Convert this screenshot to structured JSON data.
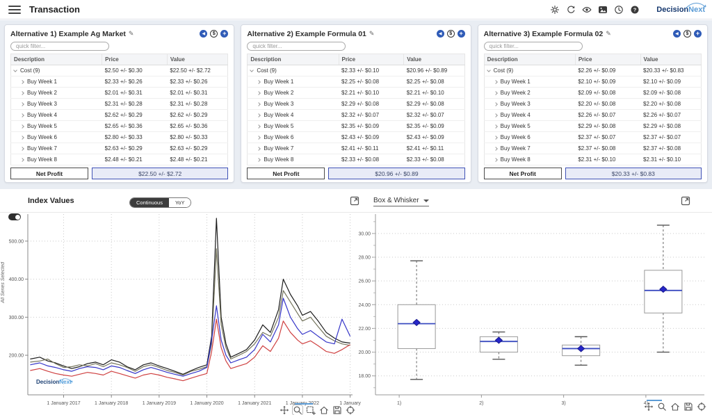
{
  "header": {
    "title": "Transaction",
    "icons": [
      "settings",
      "refresh",
      "eye",
      "image",
      "clock",
      "help"
    ],
    "logo_decision": "Decision",
    "logo_next": "Next"
  },
  "panels": [
    {
      "title": "Alternative 1) Example Ag Market",
      "quick_filter_placeholder": "quick filter...",
      "columns": [
        "Description",
        "Price",
        "Value"
      ],
      "rows": [
        {
          "label": "Cost (9)",
          "price": "$2.50 +/- $0.30",
          "value": "$22.50 +/- $2.72",
          "level": 0,
          "expanded": true
        },
        {
          "label": "Buy Week 1",
          "price": "$2.33 +/- $0.26",
          "value": "$2.33 +/- $0.26",
          "level": 1
        },
        {
          "label": "Buy Week 2",
          "price": "$2.01 +/- $0.31",
          "value": "$2.01 +/- $0.31",
          "level": 1
        },
        {
          "label": "Buy Week 3",
          "price": "$2.31 +/- $0.28",
          "value": "$2.31 +/- $0.28",
          "level": 1
        },
        {
          "label": "Buy Week 4",
          "price": "$2.62 +/- $0.29",
          "value": "$2.62 +/- $0.29",
          "level": 1
        },
        {
          "label": "Buy Week 5",
          "price": "$2.65 +/- $0.36",
          "value": "$2.65 +/- $0.36",
          "level": 1
        },
        {
          "label": "Buy Week 6",
          "price": "$2.80 +/- $0.33",
          "value": "$2.80 +/- $0.33",
          "level": 1
        },
        {
          "label": "Buy Week 7",
          "price": "$2.63 +/- $0.29",
          "value": "$2.63 +/- $0.29",
          "level": 1
        },
        {
          "label": "Buy Week 8",
          "price": "$2.48 +/- $0.21",
          "value": "$2.48 +/- $0.21",
          "level": 1
        }
      ],
      "net_profit_label": "Net Profit",
      "net_profit_value": "$22.50 +/- $2.72"
    },
    {
      "title": "Alternative 2) Example Formula 01",
      "quick_filter_placeholder": "quick filter...",
      "columns": [
        "Description",
        "Price",
        "Value"
      ],
      "rows": [
        {
          "label": "Cost (9)",
          "price": "$2.33 +/- $0.10",
          "value": "$20.96 +/- $0.89",
          "level": 0,
          "expanded": true
        },
        {
          "label": "Buy Week 1",
          "price": "$2.25 +/- $0.08",
          "value": "$2.25 +/- $0.08",
          "level": 1
        },
        {
          "label": "Buy Week 2",
          "price": "$2.21 +/- $0.10",
          "value": "$2.21 +/- $0.10",
          "level": 1
        },
        {
          "label": "Buy Week 3",
          "price": "$2.29 +/- $0.08",
          "value": "$2.29 +/- $0.08",
          "level": 1
        },
        {
          "label": "Buy Week 4",
          "price": "$2.32 +/- $0.07",
          "value": "$2.32 +/- $0.07",
          "level": 1
        },
        {
          "label": "Buy Week 5",
          "price": "$2.35 +/- $0.09",
          "value": "$2.35 +/- $0.09",
          "level": 1
        },
        {
          "label": "Buy Week 6",
          "price": "$2.43 +/- $0.09",
          "value": "$2.43 +/- $0.09",
          "level": 1
        },
        {
          "label": "Buy Week 7",
          "price": "$2.41 +/- $0.11",
          "value": "$2.41 +/- $0.11",
          "level": 1
        },
        {
          "label": "Buy Week 8",
          "price": "$2.33 +/- $0.08",
          "value": "$2.33 +/- $0.08",
          "level": 1
        }
      ],
      "net_profit_label": "Net Profit",
      "net_profit_value": "$20.96 +/- $0.89"
    },
    {
      "title": "Alternative 3) Example Formula 02",
      "quick_filter_placeholder": "quick filter...",
      "columns": [
        "Description",
        "Price",
        "Value"
      ],
      "rows": [
        {
          "label": "Cost (9)",
          "price": "$2.26 +/- $0.09",
          "value": "$20.33 +/- $0.83",
          "level": 0,
          "expanded": true
        },
        {
          "label": "Buy Week 1",
          "price": "$2.10 +/- $0.09",
          "value": "$2.10 +/- $0.09",
          "level": 1
        },
        {
          "label": "Buy Week 2",
          "price": "$2.09 +/- $0.08",
          "value": "$2.09 +/- $0.08",
          "level": 1
        },
        {
          "label": "Buy Week 3",
          "price": "$2.20 +/- $0.08",
          "value": "$2.20 +/- $0.08",
          "level": 1
        },
        {
          "label": "Buy Week 4",
          "price": "$2.26 +/- $0.07",
          "value": "$2.26 +/- $0.07",
          "level": 1
        },
        {
          "label": "Buy Week 5",
          "price": "$2.29 +/- $0.08",
          "value": "$2.29 +/- $0.08",
          "level": 1
        },
        {
          "label": "Buy Week 6",
          "price": "$2.37 +/- $0.07",
          "value": "$2.37 +/- $0.07",
          "level": 1
        },
        {
          "label": "Buy Week 7",
          "price": "$2.37 +/- $0.08",
          "value": "$2.37 +/- $0.08",
          "level": 1
        },
        {
          "label": "Buy Week 8",
          "price": "$2.31 +/- $0.10",
          "value": "$2.31 +/- $0.10",
          "level": 1
        }
      ],
      "net_profit_label": "Net Profit",
      "net_profit_value": "$20.33 +/- $0.83"
    }
  ],
  "left_chart": {
    "title": "Index Values",
    "toggle_options": [
      "Continuous",
      "YoY"
    ],
    "toggle_selected": "Continuous",
    "y_axis_label": "All Series Selected",
    "watermark_decision": "Decision",
    "watermark_next": "Next",
    "toolbar": [
      "pan",
      "zoom",
      "zoom-box",
      "home",
      "save",
      "crosshair"
    ]
  },
  "right_chart": {
    "selector_value": "Box & Whisker",
    "toolbar": [
      "pan",
      "zoom",
      "home",
      "save",
      "crosshair"
    ]
  },
  "colors": {
    "accent_blue": "#2f5bb7",
    "net_profit_bg": "#e8ebf7",
    "net_profit_border": "#3f51b5",
    "page_bg": "#e9edf3"
  },
  "chart_data": [
    {
      "type": "line",
      "title": "Index Values",
      "xlabel": "",
      "ylabel": "All Series Selected",
      "grid": "dotted",
      "legend": "hidden",
      "xlim": [
        2016.25,
        2023.05
      ],
      "ylim": [
        96,
        571
      ],
      "x_ticks": {
        "values": [
          2017,
          2018,
          2019,
          2020,
          2021,
          2022,
          2023
        ],
        "labels": [
          "1 January 2017",
          "1 January 2018",
          "1 January 2019",
          "1 January 2020",
          "1 January 2021",
          "1 January 2022",
          "1 January"
        ]
      },
      "y_ticks": [
        200,
        300,
        400,
        500
      ],
      "x": [
        2016.3,
        2016.5,
        2016.67,
        2016.83,
        2017.0,
        2017.17,
        2017.33,
        2017.5,
        2017.67,
        2017.83,
        2018.0,
        2018.17,
        2018.33,
        2018.5,
        2018.67,
        2018.83,
        2019.0,
        2019.17,
        2019.33,
        2019.5,
        2019.67,
        2019.83,
        2020.0,
        2020.1,
        2020.2,
        2020.3,
        2020.4,
        2020.5,
        2020.67,
        2020.83,
        2021.0,
        2021.17,
        2021.33,
        2021.5,
        2021.6,
        2021.75,
        2021.9,
        2022.0,
        2022.17,
        2022.33,
        2022.5,
        2022.67,
        2022.83,
        2023.0
      ],
      "series": [
        {
          "name": "series-black",
          "color": "#1c1c1c",
          "values": [
            190,
            195,
            185,
            180,
            172,
            165,
            170,
            178,
            182,
            175,
            188,
            182,
            170,
            162,
            175,
            180,
            172,
            165,
            158,
            150,
            160,
            168,
            175,
            250,
            560,
            300,
            230,
            195,
            205,
            215,
            240,
            280,
            260,
            320,
            400,
            360,
            330,
            305,
            315,
            290,
            260,
            245,
            235,
            232
          ]
        },
        {
          "name": "series-olive",
          "color": "#74745c",
          "values": [
            182,
            185,
            190,
            178,
            168,
            170,
            175,
            172,
            178,
            170,
            180,
            175,
            168,
            158,
            170,
            175,
            168,
            160,
            155,
            148,
            158,
            163,
            170,
            230,
            480,
            280,
            220,
            190,
            200,
            210,
            230,
            260,
            250,
            300,
            370,
            340,
            310,
            290,
            300,
            275,
            250,
            238,
            230,
            226
          ]
        },
        {
          "name": "series-blue",
          "color": "#3434c8",
          "values": [
            175,
            180,
            172,
            168,
            162,
            158,
            165,
            170,
            168,
            162,
            172,
            168,
            160,
            152,
            162,
            168,
            162,
            155,
            150,
            145,
            152,
            158,
            168,
            240,
            330,
            240,
            200,
            180,
            188,
            195,
            215,
            255,
            235,
            280,
            350,
            300,
            270,
            255,
            265,
            250,
            235,
            230,
            295,
            250
          ]
        },
        {
          "name": "series-red",
          "color": "#cf4040",
          "values": [
            160,
            165,
            158,
            152,
            148,
            145,
            150,
            155,
            152,
            148,
            158,
            152,
            146,
            140,
            148,
            152,
            148,
            142,
            138,
            133,
            140,
            146,
            152,
            210,
            295,
            220,
            185,
            165,
            172,
            178,
            195,
            225,
            210,
            245,
            290,
            260,
            240,
            230,
            238,
            225,
            210,
            205,
            215,
            228
          ]
        }
      ]
    },
    {
      "type": "box",
      "title": "Box & Whisker",
      "grid": "dotted",
      "categories": [
        "1)",
        "2)",
        "3)",
        "4)"
      ],
      "y_ticks": [
        18,
        20,
        22,
        24,
        26,
        28,
        30
      ],
      "ylim": [
        16.4,
        31.4
      ],
      "mean_marker": "diamond",
      "median_color": "#3b4cc0",
      "box_color": "#999999",
      "boxes": [
        {
          "category": "1)",
          "low": 17.7,
          "q1": 20.3,
          "median": 22.4,
          "mean": 22.5,
          "q3": 24.0,
          "high": 27.7
        },
        {
          "category": "2)",
          "low": 19.4,
          "q1": 20.0,
          "median": 20.9,
          "mean": 21.0,
          "q3": 21.3,
          "high": 21.7
        },
        {
          "category": "3)",
          "low": 18.9,
          "q1": 19.7,
          "median": 20.3,
          "mean": 20.3,
          "q3": 20.6,
          "high": 21.3
        },
        {
          "category": "4)",
          "low": 20.0,
          "q1": 23.3,
          "median": 25.2,
          "mean": 25.3,
          "q3": 26.9,
          "high": 30.7
        }
      ]
    }
  ]
}
